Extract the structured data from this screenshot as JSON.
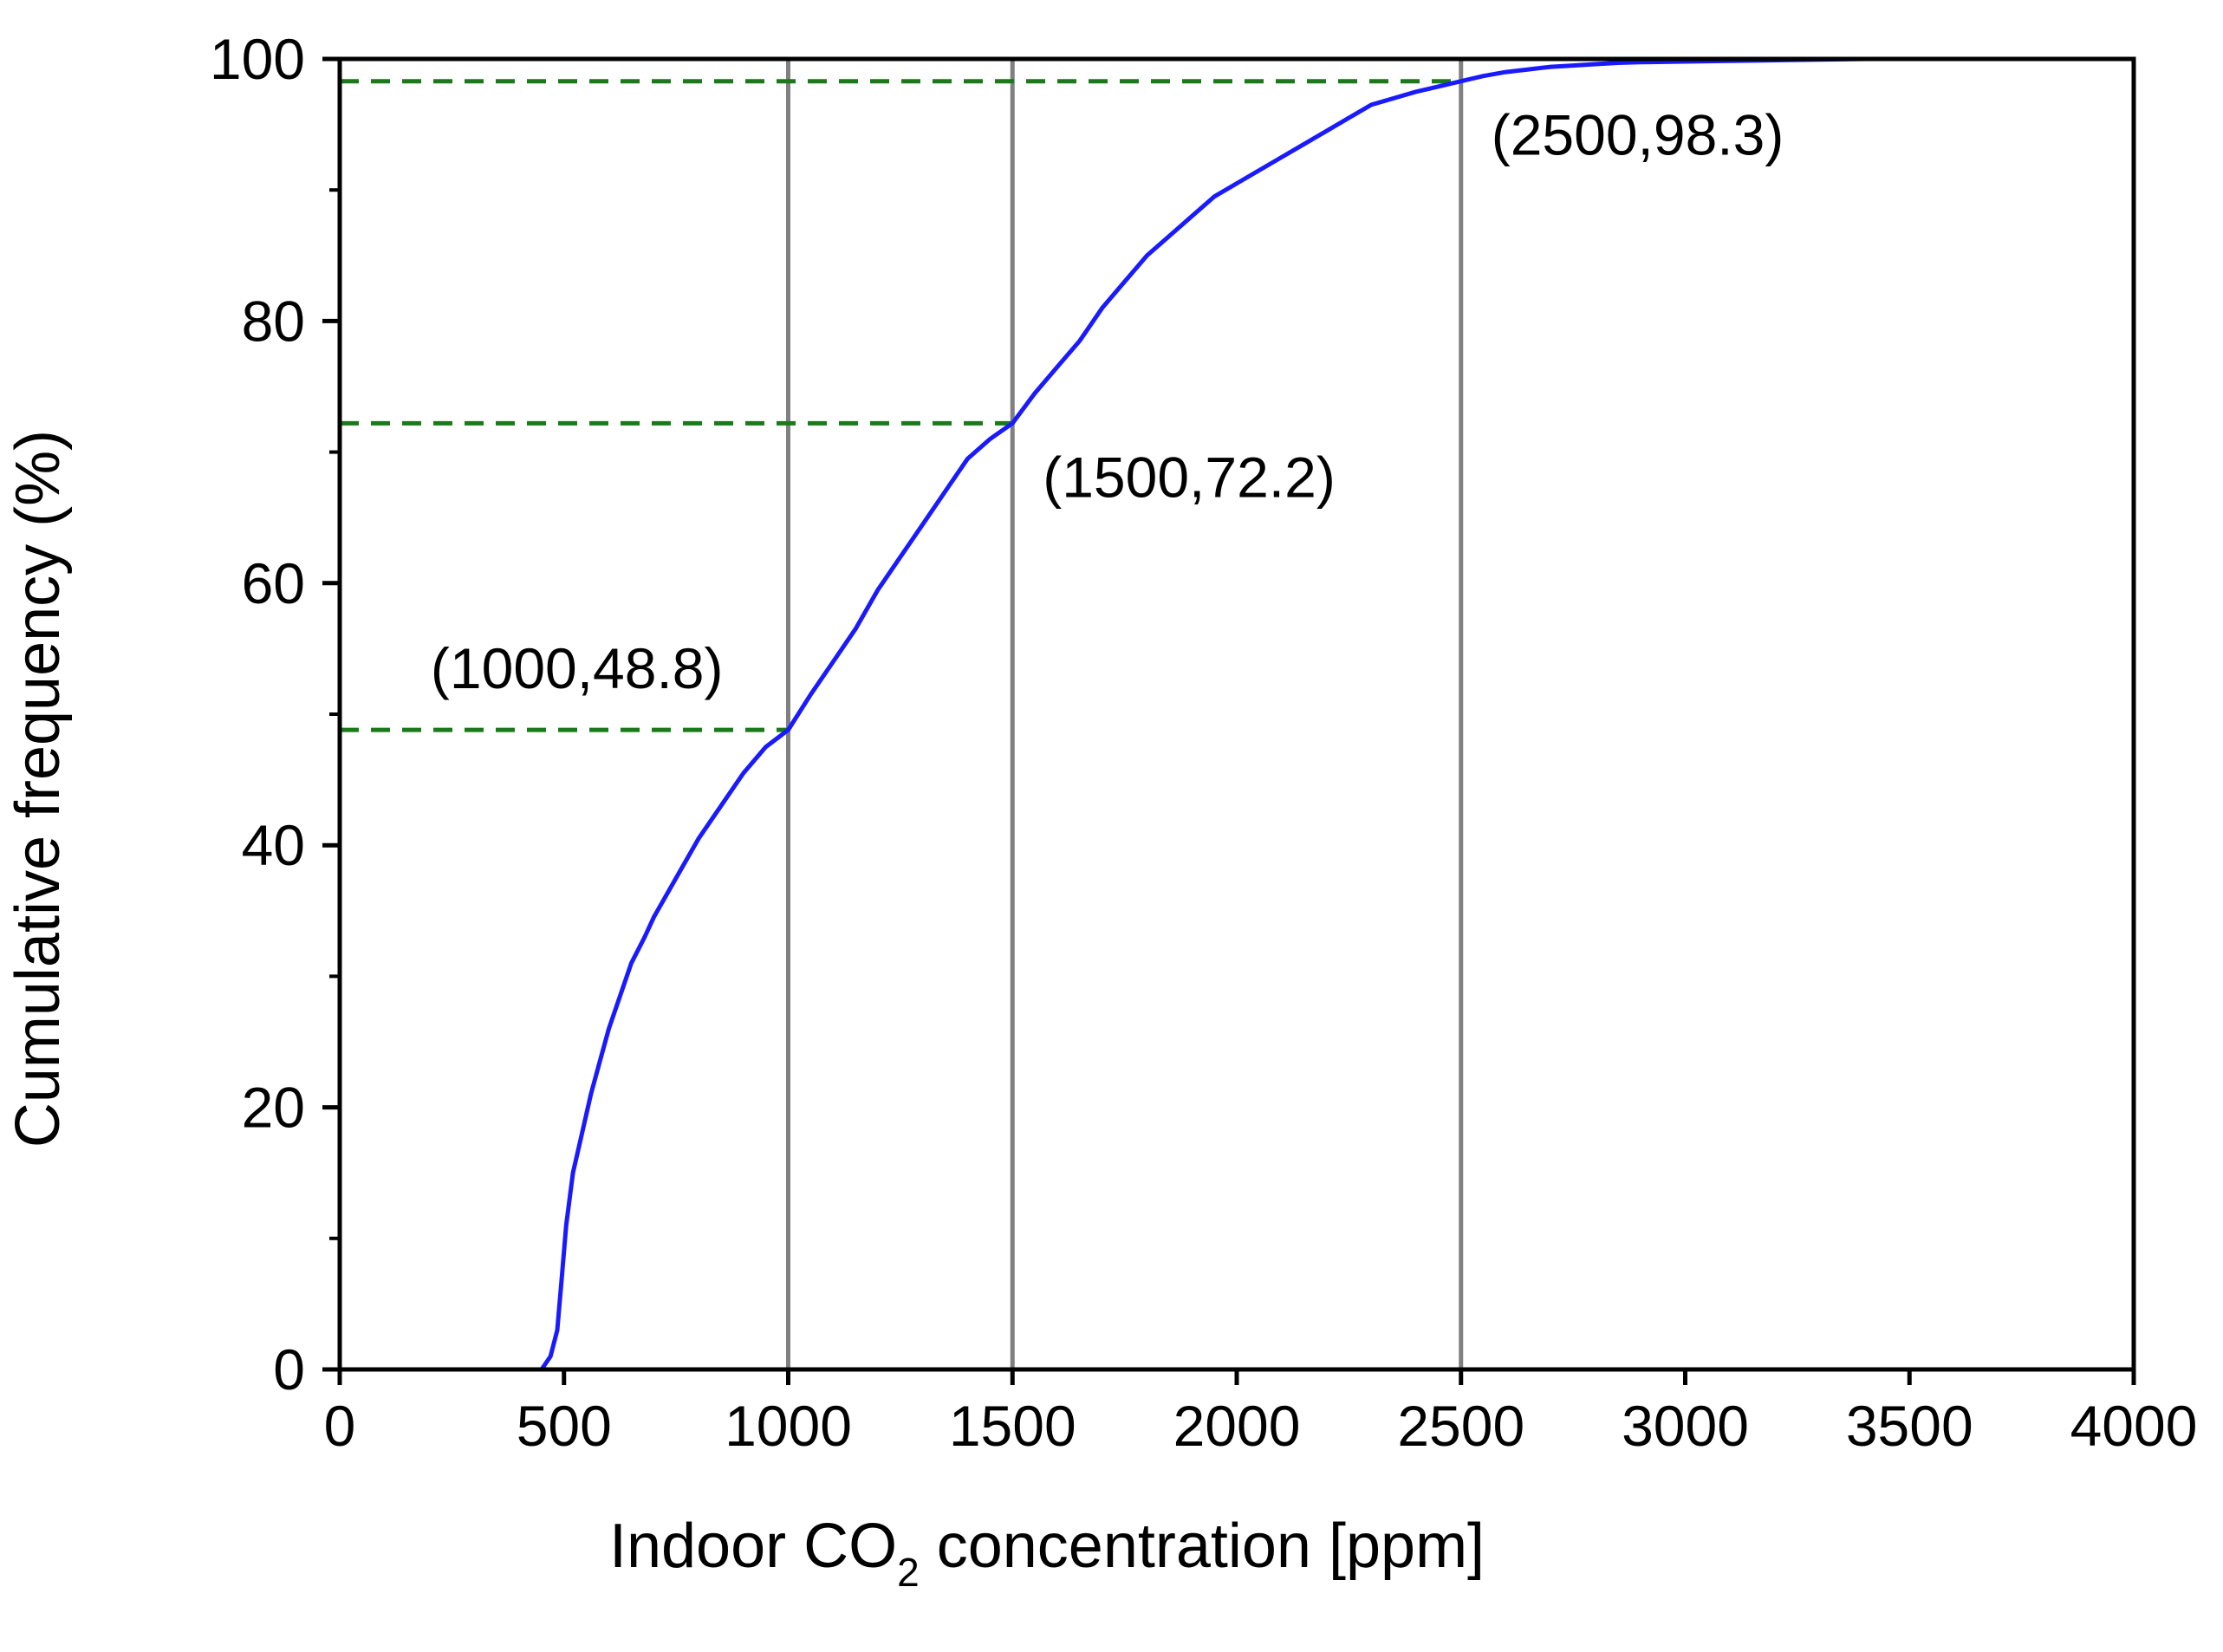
{
  "chart_data": {
    "type": "line",
    "title": "",
    "xlabel": "Indoor CO",
    "xlabel_subscript": "2",
    "xlabel_suffix": " concentration [ppm]",
    "ylabel": "Cumulative frequency (%)",
    "xlim": [
      0,
      4000
    ],
    "ylim": [
      0,
      100
    ],
    "x_ticks": [
      0,
      500,
      1000,
      1500,
      2000,
      2500,
      3000,
      3500,
      4000
    ],
    "x_tick_labels": [
      "0",
      "500",
      "1000",
      "1500",
      "2000",
      "2500",
      "3000",
      "3500",
      "4000"
    ],
    "y_ticks": [
      0,
      20,
      40,
      60,
      80,
      100
    ],
    "y_tick_labels": [
      "0",
      "20",
      "40",
      "60",
      "80",
      "100"
    ],
    "y_minor_ticks": [
      10,
      30,
      50,
      70,
      90
    ],
    "grid": false,
    "series": [
      {
        "name": "Cumulative frequency",
        "color": "#1a1aff",
        "x": [
          450,
          470,
          485,
          495,
          505,
          520,
          540,
          560,
          580,
          600,
          620,
          650,
          680,
          700,
          750,
          800,
          850,
          900,
          950,
          1000,
          1050,
          1100,
          1150,
          1200,
          1250,
          1300,
          1350,
          1400,
          1450,
          1500,
          1550,
          1600,
          1650,
          1700,
          1750,
          1800,
          1850,
          1900,
          1950,
          2000,
          2050,
          2100,
          2150,
          2200,
          2250,
          2300,
          2350,
          2400,
          2450,
          2500,
          2550,
          2600,
          2650,
          2700,
          2750,
          2800,
          2850,
          2900,
          3000,
          3100,
          3200,
          3300,
          3400
        ],
        "y": [
          0,
          1,
          3,
          7,
          11,
          15,
          18,
          21,
          23.5,
          26,
          28,
          31,
          33,
          34.5,
          37.5,
          40.5,
          43,
          45.5,
          47.5,
          48.8,
          51.5,
          54,
          56.5,
          59.5,
          62,
          64.5,
          67,
          69.5,
          71,
          72.2,
          74.5,
          76.5,
          78.5,
          81,
          83,
          85,
          86.5,
          88,
          89.5,
          90.5,
          91.5,
          92.5,
          93.5,
          94.5,
          95.5,
          96.5,
          97,
          97.5,
          97.9,
          98.3,
          98.7,
          99,
          99.2,
          99.4,
          99.5,
          99.6,
          99.7,
          99.75,
          99.8,
          99.85,
          99.9,
          99.95,
          100
        ]
      }
    ],
    "vertical_reference_lines": [
      1000,
      1500,
      2500
    ],
    "reference_line_color": "#808080",
    "dashed_guides": [
      {
        "x": 1000,
        "y": 48.8
      },
      {
        "x": 1500,
        "y": 72.2
      },
      {
        "x": 2500,
        "y": 98.3
      }
    ],
    "guide_color": "#1a7a1a",
    "annotations": [
      {
        "text": "(1000,48.8)",
        "x": 1000,
        "y": 48.8,
        "anchor": "above-left"
      },
      {
        "text": "(1500,72.2)",
        "x": 1500,
        "y": 72.2,
        "anchor": "below-right"
      },
      {
        "text": "(2500,98.3)",
        "x": 2500,
        "y": 98.3,
        "anchor": "below-right"
      }
    ]
  }
}
